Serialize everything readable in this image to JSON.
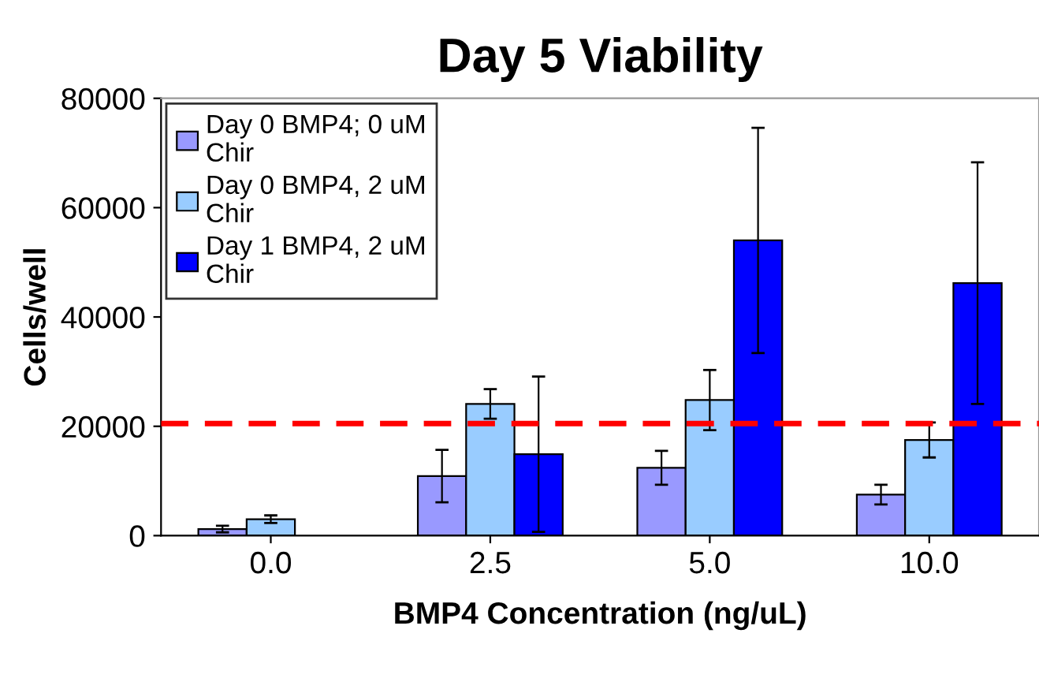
{
  "chart_data": {
    "type": "bar",
    "title": "Day 5 Viability",
    "xlabel": "BMP4 Concentration (ng/uL)",
    "ylabel": "Cells/well",
    "categories": [
      "0.0",
      "2.5",
      "5.0",
      "10.0"
    ],
    "series": [
      {
        "name": "Day 0 BMP4; 0 uM\nChir",
        "color": "#9999ff",
        "values": [
          1200,
          10900,
          12400,
          7500
        ],
        "errors": [
          600,
          4800,
          3100,
          1800
        ]
      },
      {
        "name": "Day 0 BMP4, 2 uM\nChir",
        "color": "#99ccff",
        "values": [
          3000,
          24100,
          24800,
          17500
        ],
        "errors": [
          700,
          2700,
          5500,
          3200
        ]
      },
      {
        "name": "Day 1 BMP4, 2 uM\nChir",
        "color": "#0000ff",
        "values": [
          null,
          14900,
          54000,
          46200
        ],
        "errors": [
          null,
          14200,
          20600,
          22100
        ]
      }
    ],
    "ylim": [
      0,
      80000
    ],
    "yticks": [
      0,
      20000,
      40000,
      60000,
      80000
    ],
    "ref_lines": [
      {
        "axis": "y",
        "value": 20500,
        "color": "#ff0000",
        "line_style": "dashed"
      }
    ],
    "legend": "top left",
    "grid": false
  }
}
